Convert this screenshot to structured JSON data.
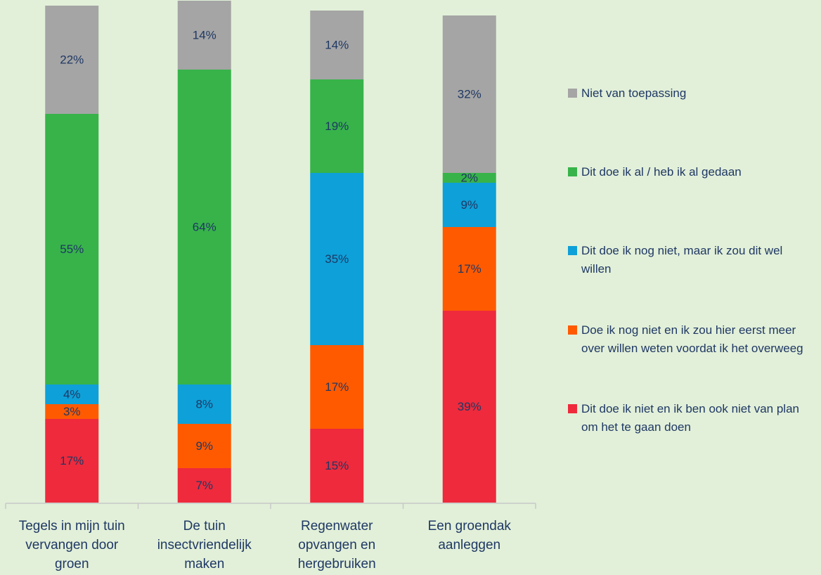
{
  "chart_data": {
    "type": "stacked_bar",
    "categories": [
      "Tegels in mijn tuin vervangen door groen",
      "De tuin insectvriendelijk maken",
      "Regenwater opvangen en hergebruiken",
      "Een groendak aanleggen"
    ],
    "ylim": [
      0,
      100
    ],
    "series": [
      {
        "name": "Dit doe ik niet en ik ben ook niet van plan om het te gaan doen",
        "color": "#ee2a3c",
        "values": [
          17,
          7,
          15,
          39
        ],
        "value_labels": [
          "17%",
          "7%",
          "15%",
          "39%"
        ]
      },
      {
        "name": "Doe ik nog niet en ik zou hier eerst meer over willen weten voordat ik het overweeg",
        "color": "#ff5a00",
        "values": [
          3,
          9,
          17,
          17
        ],
        "value_labels": [
          "3%",
          "9%",
          "17%",
          "17%"
        ]
      },
      {
        "name": "Dit doe ik nog niet, maar ik zou dit wel willen",
        "color": "#0ea0d8",
        "values": [
          4,
          8,
          35,
          9
        ],
        "value_labels": [
          "4%",
          "8%",
          "35%",
          "9%"
        ]
      },
      {
        "name": "Dit doe ik al / heb ik al gedaan",
        "color": "#37b34a",
        "values": [
          55,
          64,
          19,
          2
        ],
        "value_labels": [
          "55%",
          "64%",
          "19%",
          "2%"
        ]
      },
      {
        "name": "Niet van toepassing",
        "color": "#a5a5a5",
        "values": [
          22,
          14,
          14,
          32
        ],
        "value_labels": [
          "22%",
          "14%",
          "14%",
          "32%"
        ]
      }
    ]
  }
}
